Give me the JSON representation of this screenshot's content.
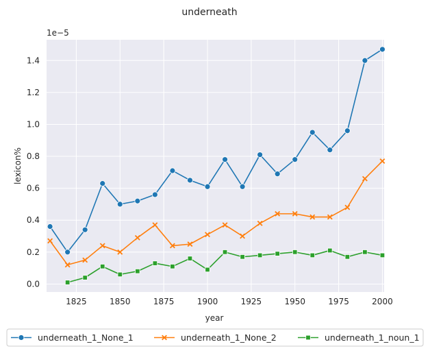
{
  "chart_data": {
    "type": "line",
    "title": "underneath",
    "xlabel": "year",
    "ylabel": "lexicon%",
    "y_offset_label": "1e−5",
    "xlim": [
      1808,
      2001
    ],
    "ylim": [
      -0.05,
      1.53
    ],
    "x_ticks": [
      1825,
      1850,
      1875,
      1900,
      1925,
      1950,
      1975,
      2000
    ],
    "y_ticks": [
      0.0,
      0.2,
      0.4,
      0.6,
      0.8,
      1.0,
      1.2,
      1.4
    ],
    "grid": true,
    "legend_position": "bottom",
    "series": [
      {
        "name": "underneath_1_None_1",
        "color": "#1f77b4",
        "marker": "circle",
        "x": [
          1810,
          1820,
          1830,
          1840,
          1850,
          1860,
          1870,
          1880,
          1890,
          1900,
          1910,
          1920,
          1930,
          1940,
          1950,
          1960,
          1970,
          1980,
          1990,
          2000
        ],
        "values": [
          0.36,
          0.2,
          0.34,
          0.63,
          0.5,
          0.52,
          0.56,
          0.71,
          0.65,
          0.61,
          0.78,
          0.61,
          0.81,
          0.69,
          0.78,
          0.95,
          0.84,
          0.96,
          1.4,
          1.47
        ]
      },
      {
        "name": "underneath_1_None_2",
        "color": "#ff7f0e",
        "marker": "x",
        "x": [
          1810,
          1820,
          1830,
          1840,
          1850,
          1860,
          1870,
          1880,
          1890,
          1900,
          1910,
          1920,
          1930,
          1940,
          1950,
          1960,
          1970,
          1980,
          1990,
          2000
        ],
        "values": [
          0.27,
          0.12,
          0.15,
          0.24,
          0.2,
          0.29,
          0.37,
          0.24,
          0.25,
          0.31,
          0.37,
          0.3,
          0.38,
          0.44,
          0.44,
          0.42,
          0.42,
          0.48,
          0.66,
          0.77
        ]
      },
      {
        "name": "underneath_1_noun_1",
        "color": "#2ca02c",
        "marker": "square",
        "x": [
          1820,
          1830,
          1840,
          1850,
          1860,
          1870,
          1880,
          1890,
          1900,
          1910,
          1920,
          1930,
          1940,
          1950,
          1960,
          1970,
          1980,
          1990,
          2000
        ],
        "values": [
          0.01,
          0.04,
          0.11,
          0.06,
          0.08,
          0.13,
          0.11,
          0.16,
          0.09,
          0.2,
          0.17,
          0.18,
          0.19,
          0.2,
          0.18,
          0.21,
          0.17,
          0.2,
          0.18
        ]
      }
    ]
  }
}
